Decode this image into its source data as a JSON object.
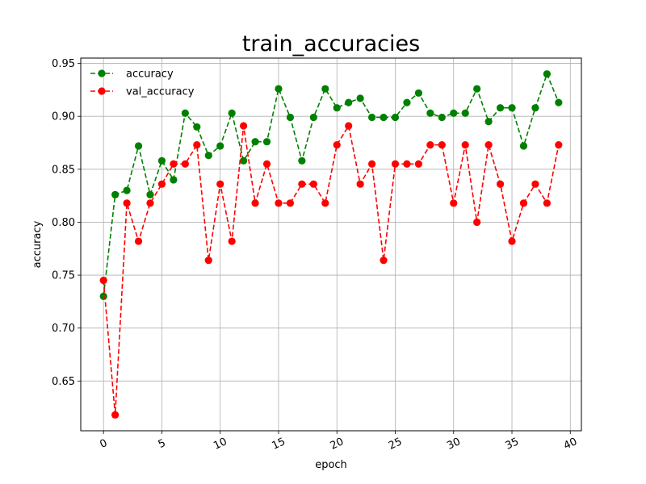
{
  "chart_data": {
    "type": "line",
    "title": "train_accuracies",
    "xlabel": "epoch",
    "ylabel": "accuracy",
    "xlim": [
      -1.95,
      40.95
    ],
    "ylim": [
      0.603,
      0.955
    ],
    "xticks": [
      0,
      5,
      10,
      15,
      20,
      25,
      30,
      35,
      40
    ],
    "yticks": [
      0.65,
      0.7,
      0.75,
      0.8,
      0.85,
      0.9,
      0.95
    ],
    "xtick_rotation": -25,
    "grid": true,
    "legend_position": "top-left",
    "x": [
      0,
      1,
      2,
      3,
      4,
      5,
      6,
      7,
      8,
      9,
      10,
      11,
      12,
      13,
      14,
      15,
      16,
      17,
      18,
      19,
      20,
      21,
      22,
      23,
      24,
      25,
      26,
      27,
      28,
      29,
      30,
      31,
      32,
      33,
      34,
      35,
      36,
      37,
      38,
      39
    ],
    "series": [
      {
        "name": "accuracy",
        "color": "#008000",
        "line_style": "dashed",
        "marker": "circle",
        "values": [
          0.73,
          0.826,
          0.83,
          0.872,
          0.826,
          0.858,
          0.84,
          0.903,
          0.89,
          0.863,
          0.872,
          0.903,
          0.858,
          0.876,
          0.876,
          0.926,
          0.899,
          0.858,
          0.899,
          0.926,
          0.908,
          0.913,
          0.917,
          0.899,
          0.899,
          0.899,
          0.913,
          0.922,
          0.903,
          0.899,
          0.903,
          0.903,
          0.926,
          0.895,
          0.908,
          0.908,
          0.872,
          0.908,
          0.94,
          0.913
        ]
      },
      {
        "name": "val_accuracy",
        "color": "#ff0000",
        "line_style": "dashed",
        "marker": "circle",
        "values": [
          0.745,
          0.618,
          0.818,
          0.782,
          0.818,
          0.836,
          0.855,
          0.855,
          0.873,
          0.764,
          0.836,
          0.782,
          0.891,
          0.818,
          0.855,
          0.818,
          0.818,
          0.836,
          0.836,
          0.818,
          0.873,
          0.891,
          0.836,
          0.855,
          0.764,
          0.855,
          0.855,
          0.855,
          0.873,
          0.873,
          0.818,
          0.873,
          0.8,
          0.873,
          0.836,
          0.782,
          0.818,
          0.836,
          0.818,
          0.873
        ]
      }
    ]
  }
}
